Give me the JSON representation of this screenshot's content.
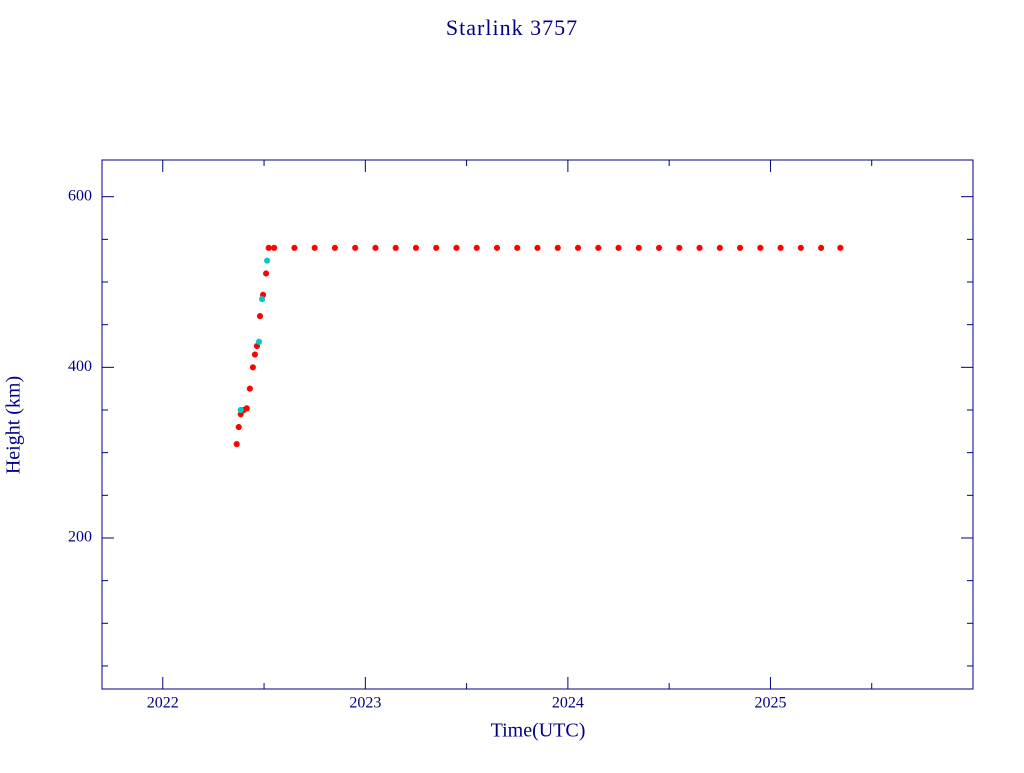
{
  "chart_data": {
    "type": "scatter",
    "title": "Starlink 3757",
    "x_label": "Time(UTC)",
    "y_label": "Height (km)",
    "xlim": [
      2021.7,
      2026.0
    ],
    "ylim": [
      23,
      643
    ],
    "xticks": [
      2022,
      2023,
      2024,
      2025
    ],
    "xticks_minor": [
      2022.5,
      2023.5,
      2024.5,
      2025.5
    ],
    "yticks": [
      200,
      400,
      600
    ],
    "yticks_minor": [
      50,
      100,
      150,
      250,
      300,
      350,
      450,
      500,
      550
    ],
    "color_axis": "#000080",
    "series": [
      {
        "color": "#ff0000",
        "x": [
          2022.365,
          2022.375,
          2022.385,
          2022.4,
          2022.415,
          2022.43,
          2022.445,
          2022.455,
          2022.465,
          2022.48,
          2022.495,
          2022.51,
          2022.523,
          2022.55,
          2022.65,
          2022.75,
          2022.85,
          2022.95,
          2023.05,
          2023.15,
          2023.25,
          2023.35,
          2023.45,
          2023.55,
          2023.65,
          2023.75,
          2023.85,
          2023.95,
          2024.05,
          2024.15,
          2024.25,
          2024.35,
          2024.45,
          2024.55,
          2024.65,
          2024.75,
          2024.85,
          2024.95,
          2025.05,
          2025.15,
          2025.25,
          2025.345
        ],
        "values": [
          310,
          330,
          345,
          350,
          352,
          375,
          400,
          415,
          425,
          460,
          485,
          510,
          540,
          540,
          540,
          540,
          540,
          540,
          540,
          540,
          540,
          540,
          540,
          540,
          540,
          540,
          540,
          540,
          540,
          540,
          540,
          540,
          540,
          540,
          540,
          540,
          540,
          540,
          540,
          540,
          540,
          540
        ]
      },
      {
        "color": "#00c8c8",
        "x": [
          2022.385,
          2022.475,
          2022.49,
          2022.515
        ],
        "values": [
          350,
          430,
          480,
          525
        ]
      }
    ]
  }
}
